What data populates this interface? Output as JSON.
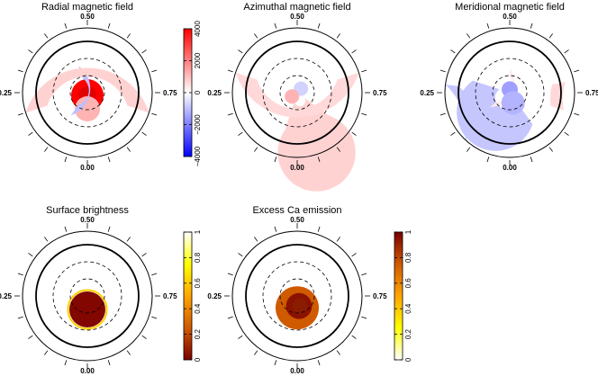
{
  "chart_data": [
    {
      "type": "heatmap",
      "projection": "polar",
      "title": "Radial magnetic field",
      "phase_labels": {
        "top": "0.50",
        "left": "0.25",
        "right": "0.75",
        "bottom": "0.00"
      },
      "colorbar": {
        "ticks": [
          "4000",
          "2000",
          "0",
          "−2000",
          "−4000"
        ],
        "range": [
          -4000,
          4000
        ],
        "colors": [
          "#0000ff",
          "#ffffff",
          "#ff0000"
        ]
      },
      "features": [
        {
          "kind": "blob",
          "lat": 85,
          "rotation_phase": 0.0,
          "radius": 18,
          "value": 4000
        },
        {
          "kind": "blob",
          "lat": 60,
          "rotation_phase": 0.0,
          "radius": 14,
          "value": 1200
        },
        {
          "kind": "ring",
          "lat_from": 62,
          "lat_to": 38,
          "phase_from": 0.1,
          "phase_to": 0.45,
          "value": -1000
        },
        {
          "kind": "ring",
          "lat_from": 12,
          "lat_to": -30,
          "phase_from": -0.2,
          "phase_to": 0.2,
          "value": 700
        }
      ]
    },
    {
      "type": "heatmap",
      "projection": "polar",
      "title": "Azimuthal magnetic field",
      "phase_labels": {
        "top": "0.50",
        "left": "0.25",
        "right": "0.75",
        "bottom": "0.00"
      },
      "features": [
        {
          "kind": "ring",
          "lat_from": 80,
          "lat_to": 18,
          "phase_from": 0.05,
          "phase_to": 0.85,
          "value": 700
        },
        {
          "kind": "ring",
          "lat_from": 12,
          "lat_to": -30,
          "phase_from": 0.3,
          "phase_to": 0.7,
          "value": 600
        },
        {
          "kind": "blob",
          "lat": 80,
          "rotation_phase": 0.62,
          "radius": 8,
          "value": -700
        },
        {
          "kind": "blob",
          "lat": 78,
          "rotation_phase": 0.15,
          "radius": 8,
          "value": 1200
        }
      ]
    },
    {
      "type": "heatmap",
      "projection": "polar",
      "title": "Meridional magnetic field",
      "phase_labels": {
        "top": "0.50",
        "left": "0.25",
        "right": "0.75",
        "bottom": "0.00"
      },
      "features": [
        {
          "kind": "ring",
          "lat_from": 70,
          "lat_to": 18,
          "phase_from": 0.3,
          "phase_to": 0.9,
          "value": -900
        },
        {
          "kind": "ring",
          "lat_from": 60,
          "lat_to": 45,
          "phase_from": 0.15,
          "phase_to": 0.5,
          "value": 300
        },
        {
          "kind": "blob",
          "lat": 84,
          "rotation_phase": 0.5,
          "radius": 9,
          "value": -1500
        },
        {
          "kind": "blob",
          "lat": 70,
          "rotation_phase": 0.95,
          "radius": 13,
          "value": -1200
        },
        {
          "kind": "ring",
          "lat_from": -5,
          "lat_to": -30,
          "phase_from": 0.12,
          "phase_to": 0.27,
          "value": -900
        },
        {
          "kind": "ring",
          "lat_from": 10,
          "lat_to": -15,
          "phase_from": 0.72,
          "phase_to": 0.8,
          "value": 600
        }
      ]
    },
    {
      "type": "heatmap",
      "projection": "polar",
      "title": "Surface brightness",
      "phase_labels": {
        "top": "0.50",
        "left": "0.25",
        "right": "0.75",
        "bottom": "0.00"
      },
      "colorbar": {
        "ticks": [
          "1",
          "0.8",
          "0.6",
          "0.4",
          "0.2",
          "0"
        ],
        "range": [
          0,
          1
        ],
        "colors": [
          "#7a0000",
          "#d05a00",
          "#ffa500",
          "#ffff00",
          "#ffffff"
        ]
      },
      "features": [
        {
          "kind": "blob",
          "lat": 65,
          "rotation_phase": 0.0,
          "radius": 20,
          "value": 0.02
        }
      ]
    },
    {
      "type": "heatmap",
      "projection": "polar",
      "title": "Excess Ca emission",
      "phase_labels": {
        "top": "0.50",
        "left": "0.25",
        "right": "0.75",
        "bottom": "0.00"
      },
      "colorbar": {
        "ticks": [
          "1",
          "0.8",
          "0.6",
          "0.4",
          "0.2",
          "0"
        ],
        "range": [
          0,
          1
        ],
        "colors": [
          "#ffffff",
          "#ffff00",
          "#ffa500",
          "#d05a00",
          "#7a0000"
        ]
      },
      "features": [
        {
          "kind": "blob",
          "lat": 68,
          "rotation_phase": 0.0,
          "radius": 24,
          "value": 0.75
        }
      ]
    }
  ]
}
